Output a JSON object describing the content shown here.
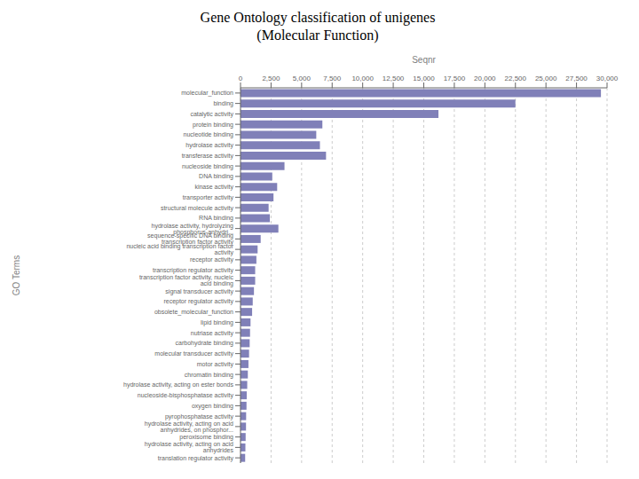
{
  "chart_data": {
    "type": "bar",
    "orientation": "horizontal",
    "title": "Gene Ontology classification of unigenes",
    "subtitle": "(Molecular Function)",
    "xlabel": "Seqnr",
    "ylabel": "GO Terms",
    "color": "#8080B8",
    "grid": true,
    "categories": [
      "molecular_function",
      "binding",
      "catalytic activity",
      "protein binding",
      "nucleotide binding",
      "hydrolase activity",
      "transferase activity",
      "nucleoside binding",
      "DNA binding",
      "kinase activity",
      "transporter activity",
      "structural molecule activity",
      "RNA binding",
      "hydrolase activity, hydrolyzing phosphorus-anhydri...",
      "sequence-specific DNA binding transcription factor activity",
      "nucleic acid binding transcription factor activity",
      "receptor activity",
      "transcription regulator activity",
      "transcription factor activity, nucleic acid binding",
      "signal transducer activity",
      "receptor regulator activity",
      "obsolete_molecular_function",
      "lipid binding",
      "nutriase activity",
      "carbohydrate binding",
      "molecular transducer activity",
      "motor activity",
      "chromatin binding",
      "hydrolase activity, acting on ester bonds",
      "nucleoside-bisphosphatase activity",
      "oxygen binding",
      "pyrophosphatase activity",
      "hydrolase activity, acting on acid anhydrides, on phosphor...",
      "peroxisome binding",
      "hydrolase activity, acting on acid anhydrides",
      "translation regulator activity"
    ],
    "values": [
      29500,
      22500,
      16200,
      6700,
      6200,
      6500,
      7000,
      3600,
      2600,
      3000,
      2700,
      2300,
      2400,
      3100,
      1650,
      1400,
      1300,
      1200,
      1200,
      1100,
      1000,
      950,
      820,
      780,
      750,
      700,
      650,
      600,
      550,
      510,
      490,
      460,
      450,
      420,
      400,
      380
    ],
    "xlim": [
      0,
      30000
    ],
    "xticks": [
      0,
      {
        "value": 2500,
        "label": "2,500"
      },
      {
        "value": 5000,
        "label": "5,000"
      },
      {
        "value": 7500,
        "label": "7,500"
      },
      {
        "value": 10000,
        "label": "10,000"
      },
      {
        "value": 12500,
        "label": "12,500"
      },
      {
        "value": 15000,
        "label": "15,000"
      },
      {
        "value": 17500,
        "label": "17,500"
      },
      {
        "value": 20000,
        "label": "20,000"
      },
      {
        "value": 22500,
        "label": "22,500"
      },
      {
        "value": 25000,
        "label": "25,000"
      },
      {
        "value": 27500,
        "label": "27,500"
      },
      {
        "value": 30000,
        "label": "30,000"
      }
    ]
  }
}
